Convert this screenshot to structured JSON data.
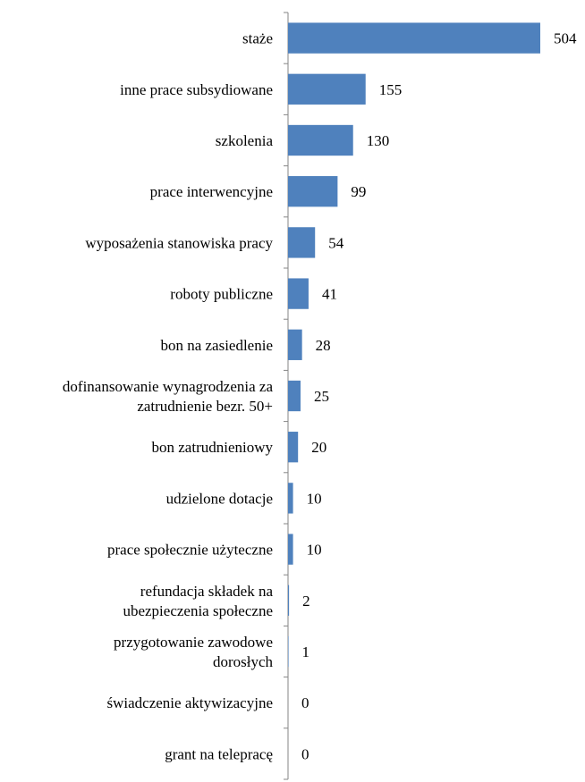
{
  "chart_data": {
    "type": "bar",
    "orientation": "horizontal",
    "title": "",
    "xlabel": "",
    "ylabel": "",
    "categories": [
      [
        "staże"
      ],
      [
        "inne prace subsydiowane"
      ],
      [
        "szkolenia"
      ],
      [
        "prace interwencyjne"
      ],
      [
        "wyposażenia stanowiska pracy"
      ],
      [
        "roboty publiczne"
      ],
      [
        "bon na zasiedlenie"
      ],
      [
        "dofinansowanie wynagrodzenia za",
        "zatrudnienie bezr. 50+"
      ],
      [
        "bon zatrudnieniowy"
      ],
      [
        "udzielone dotacje"
      ],
      [
        "prace społecznie użyteczne"
      ],
      [
        "refundacja składek na",
        "ubezpieczenia społeczne"
      ],
      [
        "przygotowanie zawodowe",
        "dorosłych"
      ],
      [
        "świadczenie aktywizacyjne"
      ],
      [
        "grant na telepracę"
      ]
    ],
    "values": [
      504,
      155,
      130,
      99,
      54,
      41,
      28,
      25,
      20,
      10,
      10,
      2,
      1,
      0,
      0
    ],
    "xlim": [
      0,
      504
    ],
    "grid": false,
    "legend": "none",
    "bar_color": "#4f81bd",
    "axis_color": "#868686"
  }
}
